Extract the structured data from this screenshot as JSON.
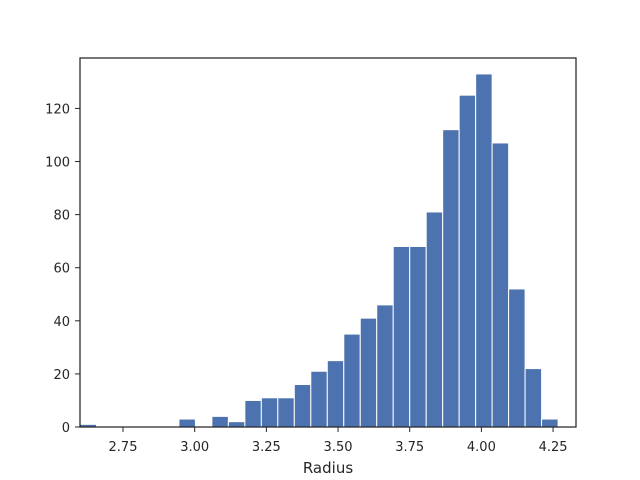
{
  "chart_data": {
    "type": "bar",
    "subtype": "histogram",
    "xlabel": "Radius",
    "ylabel": "",
    "title": "",
    "xlim": [
      2.6,
      4.33
    ],
    "ylim": [
      0,
      139
    ],
    "grid": false,
    "bar_color": "#4c72b0",
    "bar_edge_color": "#ffffff",
    "axis_color": "#262626",
    "x_ticks": [
      2.75,
      3.0,
      3.25,
      3.5,
      3.75,
      4.0,
      4.25
    ],
    "x_tick_labels": [
      "2.75",
      "3.00",
      "3.25",
      "3.50",
      "3.75",
      "4.00",
      "4.25"
    ],
    "y_ticks": [
      0,
      20,
      40,
      60,
      80,
      100,
      120
    ],
    "y_tick_labels": [
      "0",
      "20",
      "40",
      "60",
      "80",
      "100",
      "120"
    ],
    "bins": {
      "start": 2.6,
      "width": 0.0575,
      "counts": [
        1,
        0,
        0,
        0,
        0,
        0,
        3,
        0,
        4,
        2,
        10,
        11,
        11,
        16,
        21,
        25,
        35,
        41,
        46,
        68,
        68,
        81,
        112,
        125,
        133,
        107,
        52,
        22,
        3
      ]
    }
  }
}
